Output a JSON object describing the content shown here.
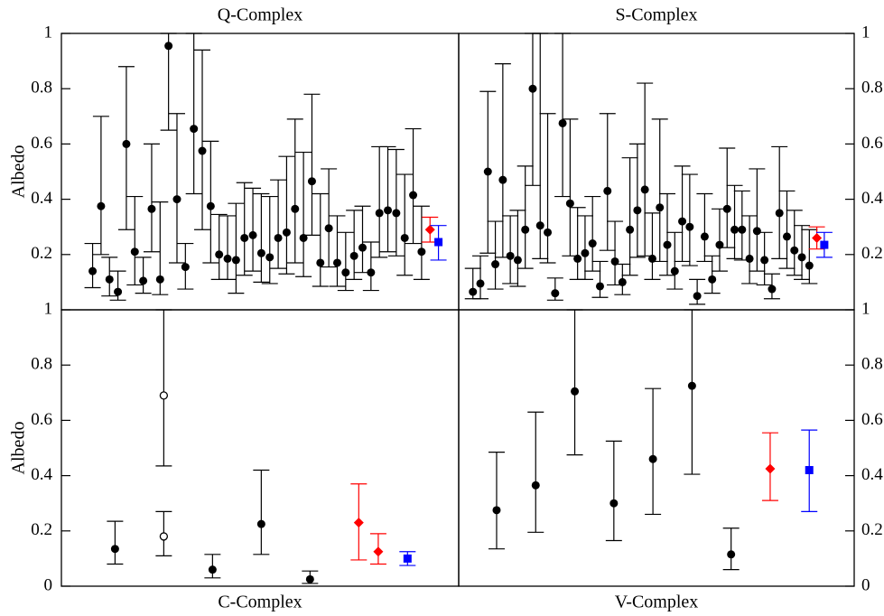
{
  "chart_data": [
    {
      "type": "errorbar",
      "title": "Q-Complex",
      "title_position": "top",
      "ylabel": "Albedo",
      "ytick_side": "left",
      "xlim": [
        -2.7,
        44.4
      ],
      "ylim": [
        0,
        1
      ],
      "yticks": [
        0.2,
        0.4,
        0.6,
        0.8,
        1
      ],
      "series": [
        {
          "color": "#000000",
          "marker": "circle",
          "x": [
            1,
            2,
            3,
            4,
            5,
            6,
            7,
            8,
            9,
            10,
            11,
            12,
            13,
            14,
            15,
            16,
            17,
            18,
            19,
            20,
            21,
            22,
            23,
            24,
            25,
            26,
            27,
            28,
            29,
            30,
            31,
            32,
            33,
            34,
            35,
            36,
            37,
            38,
            39,
            40
          ],
          "values": [
            0.14,
            0.375,
            0.11,
            0.065,
            0.6,
            0.21,
            0.105,
            0.365,
            0.11,
            0.955,
            0.4,
            0.155,
            0.655,
            0.575,
            0.375,
            0.2,
            0.185,
            0.18,
            0.26,
            0.27,
            0.205,
            0.19,
            0.26,
            0.28,
            0.365,
            0.26,
            0.465,
            0.17,
            0.295,
            0.17,
            0.135,
            0.195,
            0.225,
            0.135,
            0.35,
            0.36,
            0.35,
            0.26,
            0.415,
            0.21
          ],
          "lower": [
            0.08,
            0.2,
            0.05,
            0.035,
            0.29,
            0.09,
            0.06,
            0.21,
            0.055,
            0.65,
            0.17,
            0.075,
            0.42,
            0.29,
            0.17,
            0.11,
            0.11,
            0.06,
            0.125,
            0.14,
            0.1,
            0.095,
            0.15,
            0.13,
            0.17,
            0.12,
            0.27,
            0.085,
            0.155,
            0.085,
            0.07,
            0.11,
            0.135,
            0.07,
            0.19,
            0.21,
            0.195,
            0.125,
            0.24,
            0.11
          ],
          "upper": [
            0.24,
            0.7,
            0.19,
            0.14,
            0.88,
            0.41,
            0.19,
            0.6,
            0.39,
            1,
            0.71,
            0.24,
            1,
            0.94,
            0.61,
            0.345,
            0.34,
            0.385,
            0.46,
            0.44,
            0.42,
            0.41,
            0.47,
            0.555,
            0.69,
            0.57,
            0.78,
            0.42,
            0.51,
            0.34,
            0.28,
            0.36,
            0.375,
            0.245,
            0.59,
            0.59,
            0.58,
            0.49,
            0.655,
            0.375
          ]
        },
        {
          "color": "#ff0000",
          "marker": "diamond",
          "x": [
            41
          ],
          "values": [
            0.29
          ],
          "lower": [
            0.245
          ],
          "upper": [
            0.335
          ]
        },
        {
          "color": "#0000ff",
          "marker": "square",
          "x": [
            42
          ],
          "values": [
            0.245
          ],
          "lower": [
            0.18
          ],
          "upper": [
            0.305
          ]
        }
      ]
    },
    {
      "type": "errorbar",
      "title": "S-Complex",
      "title_position": "top",
      "ytick_side": "right",
      "xlim": [
        -0.9,
        52
      ],
      "ylim": [
        0,
        1
      ],
      "yticks": [
        0.2,
        0.4,
        0.6,
        0.8,
        1
      ],
      "series": [
        {
          "color": "#000000",
          "marker": "circle",
          "x": [
            1,
            2,
            3,
            4,
            5,
            6,
            7,
            8,
            9,
            10,
            11,
            12,
            13,
            14,
            15,
            16,
            17,
            18,
            19,
            20,
            21,
            22,
            23,
            24,
            25,
            26,
            27,
            28,
            29,
            30,
            31,
            32,
            33,
            34,
            35,
            36,
            37,
            38,
            39,
            40,
            41,
            42,
            43,
            44,
            45,
            46
          ],
          "values": [
            0.065,
            0.095,
            0.5,
            0.165,
            0.47,
            0.195,
            0.18,
            0.29,
            0.8,
            0.305,
            0.28,
            0.06,
            0.675,
            0.385,
            0.185,
            0.205,
            0.24,
            0.085,
            0.43,
            0.175,
            0.1,
            0.29,
            0.36,
            0.435,
            0.185,
            0.37,
            0.235,
            0.14,
            0.32,
            0.3,
            0.05,
            0.265,
            0.11,
            0.235,
            0.365,
            0.29,
            0.29,
            0.185,
            0.285,
            0.18,
            0.075,
            0.35,
            0.265,
            0.215,
            0.19,
            0.16
          ],
          "lower": [
            0.04,
            0.04,
            0.205,
            0.075,
            0.19,
            0.095,
            0.085,
            0.15,
            0.45,
            0.185,
            0.17,
            0.035,
            0.41,
            0.195,
            0.11,
            0.11,
            0.14,
            0.045,
            0.215,
            0.09,
            0.055,
            0.125,
            0.19,
            0.195,
            0.11,
            0.175,
            0.125,
            0.075,
            0.175,
            0.16,
            0.02,
            0.175,
            0.06,
            0.14,
            0.225,
            0.185,
            0.18,
            0.095,
            0.14,
            0.09,
            0.04,
            0.185,
            0.15,
            0.125,
            0.11,
            0.095
          ],
          "upper": [
            0.15,
            0.195,
            0.79,
            0.32,
            0.89,
            0.34,
            0.36,
            0.52,
            1,
            1,
            0.71,
            0.115,
            1,
            0.69,
            0.37,
            0.34,
            0.41,
            0.175,
            0.71,
            0.32,
            0.165,
            0.55,
            0.6,
            0.82,
            0.35,
            0.69,
            0.42,
            0.28,
            0.52,
            0.49,
            0.11,
            0.42,
            0.195,
            0.365,
            0.585,
            0.45,
            0.43,
            0.34,
            0.51,
            0.28,
            0.13,
            0.59,
            0.43,
            0.36,
            0.305,
            0.29
          ]
        },
        {
          "color": "#ff0000",
          "marker": "diamond",
          "x": [
            47
          ],
          "values": [
            0.26
          ],
          "lower": [
            0.22
          ],
          "upper": [
            0.3
          ]
        },
        {
          "color": "#0000ff",
          "marker": "square",
          "x": [
            48
          ],
          "values": [
            0.235
          ],
          "lower": [
            0.19
          ],
          "upper": [
            0.28
          ]
        }
      ]
    },
    {
      "type": "errorbar",
      "title": "C-Complex",
      "title_position": "bottom",
      "ylabel": "Albedo",
      "ytick_side": "left",
      "xlim": [
        -0.1,
        8.05
      ],
      "ylim": [
        0,
        1
      ],
      "yticks": [
        0,
        0.2,
        0.4,
        0.6,
        0.8,
        1
      ],
      "series": [
        {
          "color": "#000000",
          "marker": "circle",
          "x": [
            1,
            3,
            4,
            5
          ],
          "values": [
            0.135,
            0.06,
            0.225,
            0.025
          ],
          "lower": [
            0.08,
            0.03,
            0.115,
            0.01
          ],
          "upper": [
            0.235,
            0.115,
            0.42,
            0.055
          ]
        },
        {
          "color": "#000000",
          "marker": "circle-open",
          "x": [
            2,
            2
          ],
          "values": [
            0.69,
            0.18
          ],
          "lower": [
            0.435,
            0.11
          ],
          "upper": [
            1,
            0.27
          ]
        },
        {
          "color": "#ff0000",
          "marker": "diamond",
          "x": [
            6,
            6.4
          ],
          "values": [
            0.23,
            0.125
          ],
          "lower": [
            0.095,
            0.08
          ],
          "upper": [
            0.37,
            0.19
          ]
        },
        {
          "color": "#0000ff",
          "marker": "square",
          "x": [
            7
          ],
          "values": [
            0.1
          ],
          "lower": [
            0.075
          ],
          "upper": [
            0.125
          ]
        }
      ]
    },
    {
      "type": "errorbar",
      "title": "V-Complex",
      "title_position": "bottom",
      "ytick_side": "right",
      "xlim": [
        0.03,
        10.15
      ],
      "ylim": [
        0,
        1
      ],
      "yticks": [
        0,
        0.2,
        0.4,
        0.6,
        0.8,
        1
      ],
      "series": [
        {
          "color": "#000000",
          "marker": "circle",
          "x": [
            1,
            2,
            3,
            4,
            5,
            6,
            7
          ],
          "values": [
            0.275,
            0.365,
            0.705,
            0.3,
            0.46,
            0.725,
            0.115
          ],
          "lower": [
            0.135,
            0.195,
            0.475,
            0.165,
            0.26,
            0.405,
            0.06
          ],
          "upper": [
            0.485,
            0.63,
            1,
            0.525,
            0.715,
            1,
            0.21
          ]
        },
        {
          "color": "#ff0000",
          "marker": "diamond",
          "x": [
            8
          ],
          "values": [
            0.425
          ],
          "lower": [
            0.31
          ],
          "upper": [
            0.555
          ]
        },
        {
          "color": "#0000ff",
          "marker": "square",
          "x": [
            9
          ],
          "values": [
            0.42
          ],
          "lower": [
            0.27
          ],
          "upper": [
            0.565
          ]
        }
      ]
    }
  ]
}
